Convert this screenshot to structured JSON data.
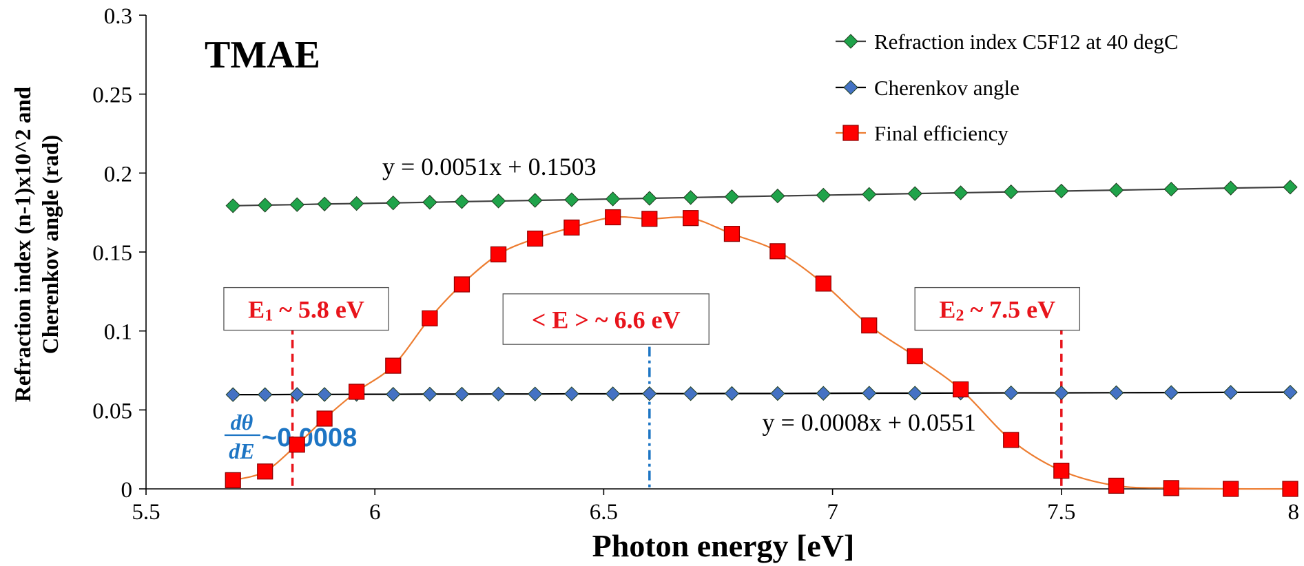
{
  "chart_data": {
    "type": "line",
    "title": "TMAE",
    "xlabel": "Photon energy [eV]",
    "ylabel_line1": "Refraction index (n-1)x10^2  and",
    "ylabel_line2": "Cherenkov angle (rad)",
    "xlim": [
      5.5,
      8
    ],
    "ylim": [
      0,
      0.3
    ],
    "xticks": [
      5.5,
      6,
      6.5,
      7,
      7.5,
      8
    ],
    "xtick_labels": [
      "5.5",
      "6",
      "6.5",
      "7",
      "7.5",
      "8"
    ],
    "yticks": [
      0,
      0.05,
      0.1,
      0.15,
      0.2,
      0.25,
      0.3
    ],
    "ytick_labels": [
      "0",
      "0.05",
      "0.1",
      "0.15",
      "0.2",
      "0.25",
      "0.3"
    ],
    "grid": false,
    "legend_position": "top-right",
    "series": [
      {
        "name": "Refraction index C5F12 at 40 degC",
        "marker": "diamond",
        "color": "#1fa34a",
        "line_color": "#404040",
        "x": [
          5.69,
          5.76,
          5.83,
          5.89,
          5.96,
          6.04,
          6.12,
          6.19,
          6.27,
          6.35,
          6.43,
          6.52,
          6.6,
          6.69,
          6.78,
          6.88,
          6.98,
          7.08,
          7.18,
          7.28,
          7.39,
          7.5,
          7.62,
          7.74,
          7.87,
          8.0
        ],
        "values": [
          0.1793,
          0.1797,
          0.18,
          0.1804,
          0.1807,
          0.1811,
          0.1815,
          0.1819,
          0.1823,
          0.1827,
          0.1831,
          0.1836,
          0.184,
          0.1845,
          0.185,
          0.1855,
          0.186,
          0.1865,
          0.187,
          0.1875,
          0.1881,
          0.1886,
          0.1892,
          0.1898,
          0.1905,
          0.1911
        ]
      },
      {
        "name": "Cherenkov angle",
        "marker": "diamond",
        "color": "#4472c4",
        "line_color": "#000000",
        "x": [
          5.69,
          5.76,
          5.83,
          5.89,
          5.96,
          6.04,
          6.12,
          6.19,
          6.27,
          6.35,
          6.43,
          6.52,
          6.6,
          6.69,
          6.78,
          6.88,
          6.98,
          7.08,
          7.18,
          7.28,
          7.39,
          7.5,
          7.62,
          7.74,
          7.87,
          8.0
        ],
        "values": [
          0.0597,
          0.0597,
          0.0598,
          0.0598,
          0.0599,
          0.0599,
          0.06,
          0.06,
          0.0601,
          0.0601,
          0.0602,
          0.0602,
          0.0603,
          0.0603,
          0.0604,
          0.0604,
          0.0605,
          0.0606,
          0.0606,
          0.0607,
          0.0608,
          0.0608,
          0.0609,
          0.061,
          0.0611,
          0.0612
        ]
      },
      {
        "name": "Final efficiency",
        "marker": "square",
        "color": "#ff0000",
        "line_color": "#ed7d31",
        "x": [
          5.69,
          5.76,
          5.83,
          5.89,
          5.96,
          6.04,
          6.12,
          6.19,
          6.27,
          6.35,
          6.43,
          6.52,
          6.6,
          6.69,
          6.78,
          6.88,
          6.98,
          7.08,
          7.18,
          7.28,
          7.39,
          7.5,
          7.62,
          7.74,
          7.87,
          8.0
        ],
        "values": [
          0.0055,
          0.011,
          0.028,
          0.0445,
          0.0615,
          0.078,
          0.108,
          0.1295,
          0.1485,
          0.1585,
          0.1655,
          0.172,
          0.171,
          0.1715,
          0.1615,
          0.1505,
          0.13,
          0.1035,
          0.084,
          0.063,
          0.031,
          0.0115,
          0.002,
          0.0005,
          0.0,
          0.0
        ]
      }
    ],
    "trendline_labels": [
      {
        "text": "y = 0.0051x + 0.1503",
        "x": 6.25,
        "y": 0.204
      },
      {
        "text": "y = 0.0008x + 0.0551",
        "x": 7.08,
        "y": 0.042
      }
    ],
    "markers_annotations": [
      {
        "label_main": "E",
        "label_sub": "1",
        "label_rest": " ~ 5.8 eV",
        "energy": 5.82,
        "style": "dashed",
        "color": "#e8141b",
        "box_x": [
          5.67,
          6.03
        ],
        "box_y": [
          0.1005,
          0.1275
        ],
        "line_top": 0.103
      },
      {
        "label_main": "< E > ~ 6.6 eV",
        "energy": 6.6,
        "style": "dashdot",
        "color": "#1d75c4",
        "box_x": [
          6.28,
          6.73
        ],
        "box_y": [
          0.0915,
          0.1235
        ],
        "line_top": 0.09
      },
      {
        "label_main": "E",
        "label_sub": "2",
        "label_rest": " ~ 7.5 eV",
        "energy": 7.5,
        "style": "dashed",
        "color": "#e8141b",
        "box_x": [
          7.18,
          7.54
        ],
        "box_y": [
          0.1005,
          0.1275
        ],
        "line_top": 0.103
      }
    ],
    "derivative_annotation": {
      "numerator": "dθ",
      "denominator": "dE",
      "value": "~0.0008",
      "color": "#1d75c4",
      "x": 5.98,
      "y": 0.034
    }
  }
}
